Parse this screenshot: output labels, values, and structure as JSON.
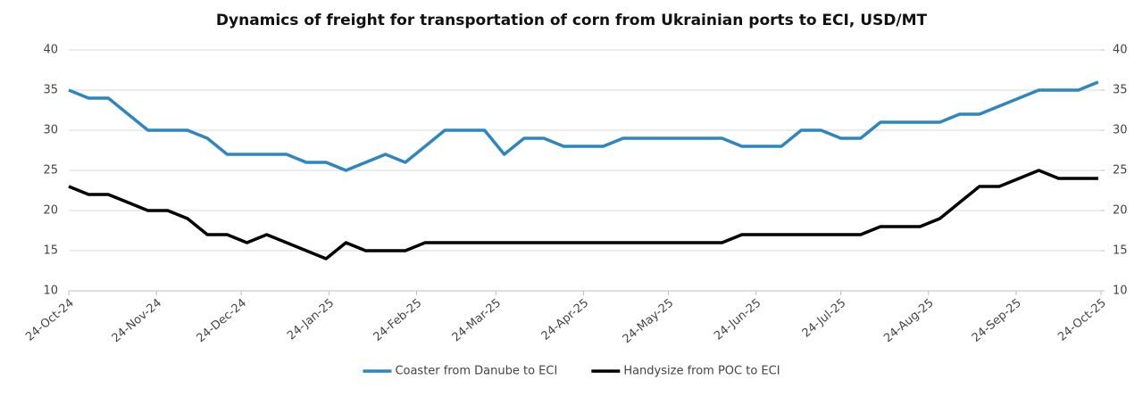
{
  "chart_data": {
    "type": "line",
    "title": "Dynamics of freight for transportation of corn from Ukrainian ports to ECI, USD/MT",
    "x": [
      "2024-10-24",
      "2024-10-31",
      "2024-11-07",
      "2024-11-14",
      "2024-11-21",
      "2024-11-28",
      "2024-12-05",
      "2024-12-12",
      "2024-12-19",
      "2024-12-26",
      "2025-01-02",
      "2025-01-09",
      "2025-01-16",
      "2025-01-23",
      "2025-01-30",
      "2025-02-06",
      "2025-02-13",
      "2025-02-20",
      "2025-02-27",
      "2025-03-06",
      "2025-03-13",
      "2025-03-20",
      "2025-03-27",
      "2025-04-03",
      "2025-04-10",
      "2025-04-17",
      "2025-04-24",
      "2025-05-01",
      "2025-05-08",
      "2025-05-15",
      "2025-05-22",
      "2025-05-29",
      "2025-06-05",
      "2025-06-12",
      "2025-06-19",
      "2025-06-26",
      "2025-07-03",
      "2025-07-10",
      "2025-07-17",
      "2025-07-24",
      "2025-07-31",
      "2025-08-07",
      "2025-08-14",
      "2025-08-21",
      "2025-08-28",
      "2025-09-04",
      "2025-09-11",
      "2025-09-18",
      "2025-09-25",
      "2025-10-02",
      "2025-10-09",
      "2025-10-16",
      "2025-10-23"
    ],
    "series": [
      {
        "name": "Coaster from Danube to ECI",
        "color": "#2e86c1",
        "values": [
          35,
          34,
          34,
          32,
          30,
          30,
          30,
          29,
          27,
          27,
          27,
          27,
          26,
          26,
          25,
          26,
          27,
          26,
          28,
          30,
          30,
          30,
          27,
          29,
          29,
          28,
          28,
          28,
          29,
          29,
          29,
          29,
          29,
          29,
          28,
          28,
          28,
          30,
          30,
          29,
          29,
          31,
          31,
          31,
          31,
          32,
          32,
          33,
          34,
          35,
          35,
          35,
          36
        ]
      },
      {
        "name": "Handysize from POC to ECI",
        "color": "#000000",
        "values": [
          23,
          22,
          22,
          21,
          20,
          20,
          19,
          17,
          17,
          16,
          17,
          16,
          15,
          14,
          16,
          15,
          15,
          15,
          16,
          16,
          16,
          16,
          16,
          16,
          16,
          16,
          16,
          16,
          16,
          16,
          16,
          16,
          16,
          16,
          17,
          17,
          17,
          17,
          17,
          17,
          17,
          18,
          18,
          18,
          19,
          21,
          23,
          23,
          24,
          25,
          24,
          24,
          24
        ]
      }
    ],
    "xlim": [
      "2024-10-24",
      "2025-10-24"
    ],
    "xticks": [
      {
        "value": "2024-10-24",
        "label": "24-Oct-24"
      },
      {
        "value": "2024-11-24",
        "label": "24-Nov-24"
      },
      {
        "value": "2024-12-24",
        "label": "24-Dec-24"
      },
      {
        "value": "2025-01-24",
        "label": "24-Jan-25"
      },
      {
        "value": "2025-02-24",
        "label": "24-Feb-25"
      },
      {
        "value": "2025-03-24",
        "label": "24-Mar-25"
      },
      {
        "value": "2025-04-24",
        "label": "24-Apr-25"
      },
      {
        "value": "2025-05-24",
        "label": "24-May-25"
      },
      {
        "value": "2025-06-24",
        "label": "24-Jun-25"
      },
      {
        "value": "2025-07-24",
        "label": "24-Jul-25"
      },
      {
        "value": "2025-08-24",
        "label": "24-Aug-25"
      },
      {
        "value": "2025-09-24",
        "label": "24-Sep-25"
      },
      {
        "value": "2025-10-24",
        "label": "24-Oct-25"
      }
    ],
    "ylim": [
      10,
      40
    ],
    "yticks": [
      10,
      15,
      20,
      25,
      30,
      35,
      40
    ],
    "y2lim": [
      10,
      40
    ],
    "y2ticks": [
      10,
      15,
      20,
      25,
      30,
      35,
      40
    ],
    "grid": true,
    "legend": "bottom"
  }
}
